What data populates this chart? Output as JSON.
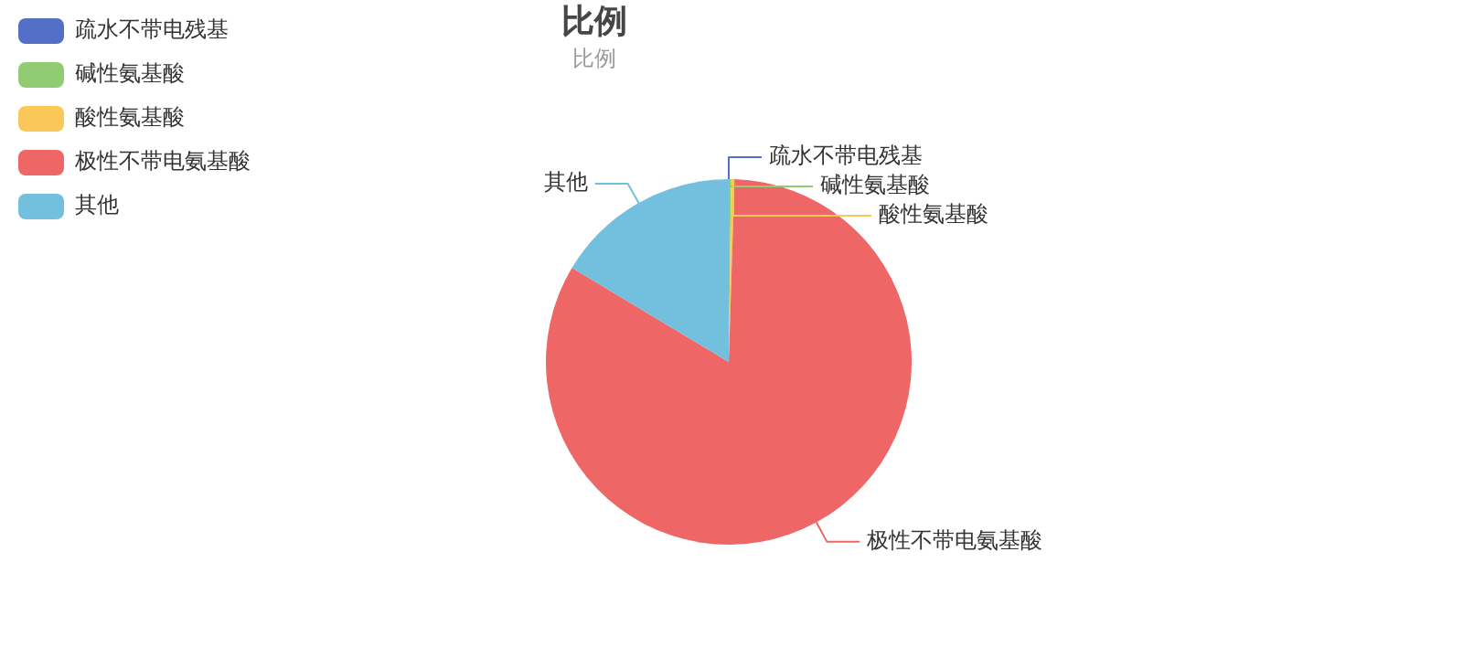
{
  "chart_data": {
    "type": "pie",
    "title": "比例",
    "subtitle": "比例",
    "categories": [
      "疏水不带电残基",
      "碱性氨基酸",
      "酸性氨基酸",
      "极性不带电氨基酸",
      "其他"
    ],
    "values": [
      0,
      0.2,
      0.3,
      83.1,
      16.4
    ],
    "colors": [
      "#5470c6",
      "#91cc75",
      "#fac858",
      "#ee6666",
      "#73c0de"
    ],
    "legend": "top left"
  }
}
